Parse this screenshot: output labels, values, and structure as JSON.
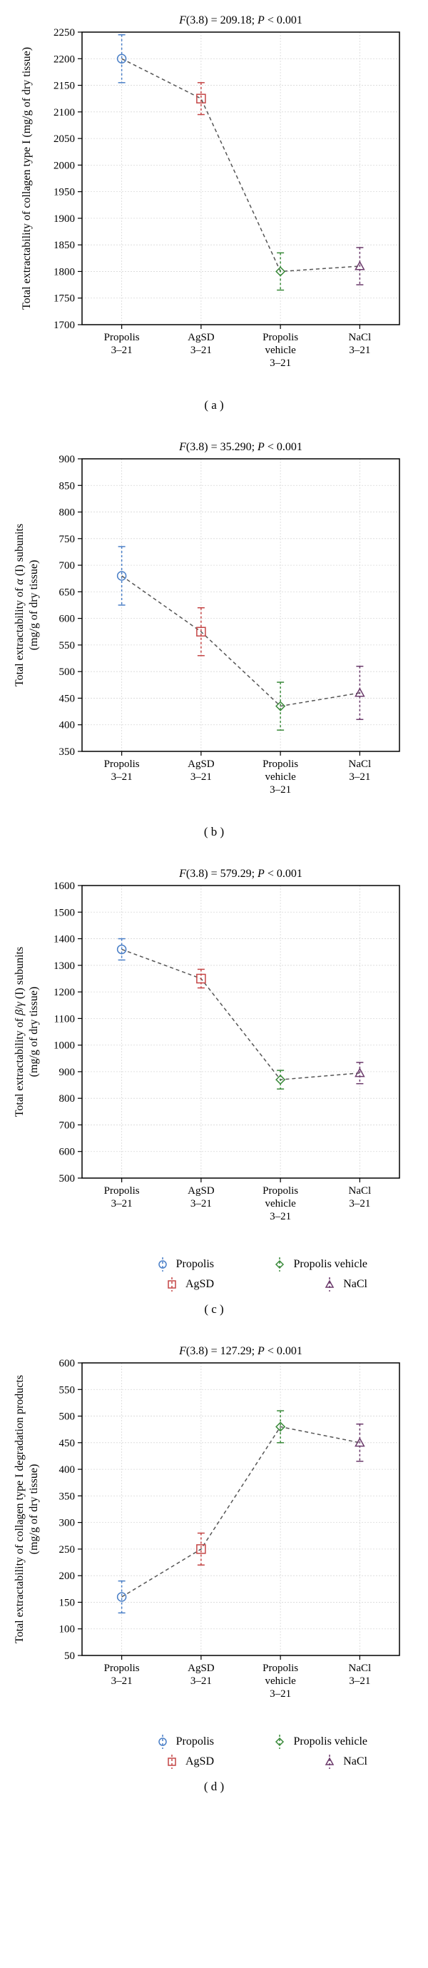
{
  "categories": [
    "Propolis\n3–21",
    "AgSD\n3–21",
    "Propolis\nvehicle\n3–21",
    "NaCl\n3–21"
  ],
  "series": [
    {
      "name": "Propolis",
      "color": "#4a7fc7",
      "marker": "circle"
    },
    {
      "name": "AgSD",
      "color": "#c44545",
      "marker": "square"
    },
    {
      "name": "Propolis vehicle",
      "color": "#3a8a3a",
      "marker": "diamond"
    },
    {
      "name": "NaCl",
      "color": "#6b3a6b",
      "marker": "triangle"
    }
  ],
  "line_color": "#555555",
  "line_dash": "5,4",
  "error_dash": "3,3",
  "axis_color": "#000000",
  "grid_color": "#d8d8d8",
  "title_fontsize": 16,
  "axis_label_fontsize": 16,
  "tick_fontsize": 15,
  "panels": [
    {
      "id": "a",
      "title": "F(3.8) = 209.18; P < 0.001",
      "ylabel": "Total extractability of collagen type I (mg/g of dry tissue)",
      "ylim": [
        1700,
        2250
      ],
      "ytick_step": 50,
      "values": [
        2200,
        2125,
        1800,
        1810
      ],
      "errors": [
        45,
        30,
        35,
        35
      ],
      "show_legend": false
    },
    {
      "id": "b",
      "title": "F(3.8) = 35.290; P < 0.001",
      "ylabel": "Total extractability of α (I) subunits\n(mg/g of dry tissue)",
      "ylim": [
        350,
        900
      ],
      "ytick_step": 50,
      "values": [
        680,
        575,
        435,
        460
      ],
      "errors": [
        55,
        45,
        45,
        50
      ],
      "show_legend": false
    },
    {
      "id": "c",
      "title": "F(3.8) = 579.29; P < 0.001",
      "ylabel": "Total extractability of β/γ (I) subunits\n(mg/g of dry tissue)",
      "ylim": [
        500,
        1600
      ],
      "ytick_step": 100,
      "values": [
        1360,
        1250,
        870,
        895
      ],
      "errors": [
        40,
        35,
        35,
        40
      ],
      "show_legend": true
    },
    {
      "id": "d",
      "title": "F(3.8) = 127.29; P < 0.001",
      "ylabel": "Total extractability of collagen type I degradation products\n(mg/g of dry tissue)",
      "ylim": [
        50,
        600
      ],
      "ytick_step": 50,
      "values": [
        160,
        250,
        480,
        450
      ],
      "errors": [
        30,
        30,
        30,
        35
      ],
      "show_legend": true
    }
  ]
}
